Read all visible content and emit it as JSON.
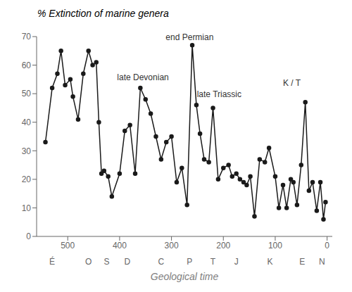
{
  "chart_data": {
    "type": "line",
    "title": "% Extinction of marine genera",
    "x_label": "Geological time",
    "x": [
      543,
      530,
      520,
      513,
      505,
      495,
      490,
      480,
      470,
      460,
      452,
      445,
      440,
      435,
      430,
      422,
      415,
      400,
      390,
      380,
      370,
      360,
      350,
      340,
      330,
      320,
      310,
      300,
      290,
      280,
      270,
      260,
      252,
      245,
      237,
      228,
      220,
      210,
      200,
      190,
      183,
      175,
      168,
      161,
      155,
      148,
      140,
      130,
      120,
      112,
      100,
      93,
      85,
      78,
      70,
      65,
      58,
      50,
      42,
      35,
      28,
      20,
      13,
      7,
      3
    ],
    "values": [
      33,
      52,
      57,
      65,
      53,
      55,
      49,
      41,
      57,
      65,
      60,
      61,
      40,
      22,
      23,
      21,
      14,
      22,
      37,
      39,
      22,
      52,
      48,
      43,
      35,
      27,
      33,
      35,
      19,
      24,
      11,
      67,
      46,
      36,
      27,
      26,
      45,
      20,
      24,
      25,
      21,
      22,
      20,
      19,
      18,
      21,
      7,
      27,
      26,
      31,
      21,
      10,
      18,
      10,
      20,
      19,
      11,
      25,
      47,
      16,
      19,
      9,
      19,
      6,
      12
    ],
    "color": "#1a1a1a",
    "marker": "circle",
    "xlim": [
      560,
      -10
    ],
    "xticks": [
      500,
      400,
      300,
      200,
      100,
      0
    ],
    "ylim": [
      0,
      70
    ],
    "yticks": [
      0,
      10,
      20,
      30,
      40,
      50,
      60,
      70
    ],
    "grid": false,
    "annotations": [
      {
        "text": "end Permian",
        "x": 265,
        "y": 68
      },
      {
        "text": "late Devonian",
        "x": 355,
        "y": 54
      },
      {
        "text": "late Triassic",
        "x": 208,
        "y": 48
      },
      {
        "text": "K / T",
        "x": 68,
        "y": 52
      },
      {
        "text": "É",
        "x": 530
      },
      {
        "text": "O",
        "x": 460
      },
      {
        "text": "S",
        "x": 425
      },
      {
        "text": "D",
        "x": 385
      },
      {
        "text": "C",
        "x": 320
      },
      {
        "text": "P",
        "x": 265
      },
      {
        "text": "T",
        "x": 220
      },
      {
        "text": "J",
        "x": 175
      },
      {
        "text": "K",
        "x": 110
      },
      {
        "text": "E",
        "x": 48
      },
      {
        "text": "N",
        "x": 10
      }
    ]
  }
}
